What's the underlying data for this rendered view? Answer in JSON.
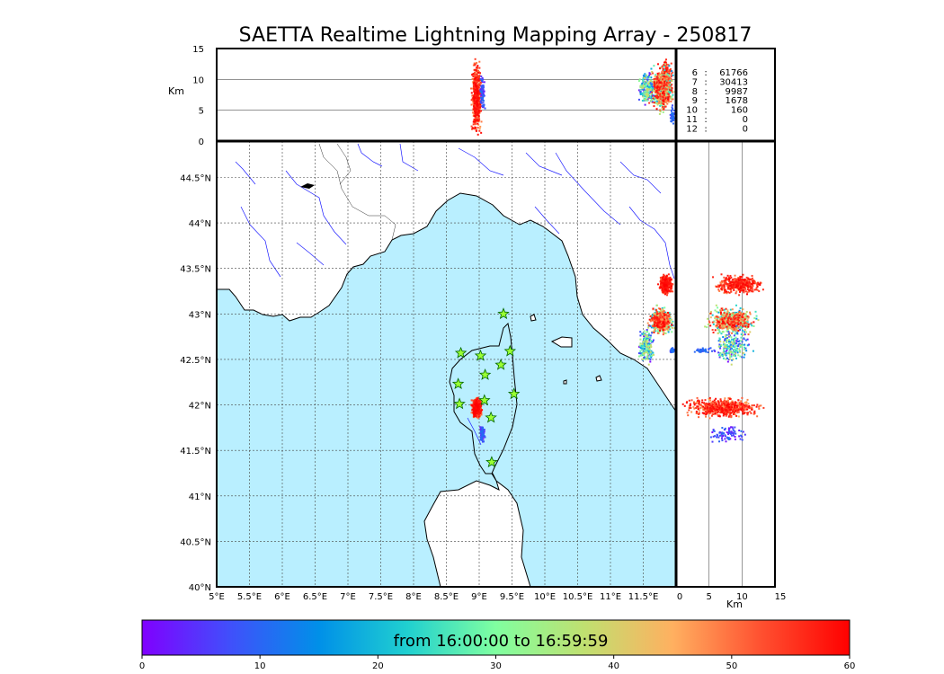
{
  "title": "SAETTA Realtime Lightning Mapping Array - 250817",
  "colors": {
    "sea": "#b9efff",
    "land": "#ffffff",
    "coast": "#000000",
    "river": "#1a1aff",
    "grid": "#444444",
    "station_fill": "#9aff33",
    "station_stroke": "#006600",
    "legend_highlight": "#ff0000"
  },
  "chart_data": {
    "type": "scatter",
    "map": {
      "lon_range": [
        5.0,
        12.0
      ],
      "lat_range": [
        40.0,
        44.9
      ],
      "lon_ticks": [
        "5°E",
        "5.5°E",
        "6°E",
        "6.5°E",
        "7°E",
        "7.5°E",
        "8°E",
        "8.5°E",
        "9°E",
        "9.5°E",
        "10°E",
        "10.5°E",
        "11°E",
        "11.5°E"
      ],
      "lat_ticks": [
        "40°N",
        "40.5°N",
        "41°N",
        "41.5°N",
        "42°N",
        "42.5°N",
        "43°N",
        "43.5°N",
        "44°N",
        "44.5°N"
      ],
      "grid": true
    },
    "altitude_axis": {
      "label": "Km",
      "range": [
        0,
        15
      ],
      "ticks": [
        "0",
        "5",
        "10",
        "15"
      ]
    },
    "stations": [
      {
        "lon": 9.37,
        "lat": 43.0
      },
      {
        "lon": 8.72,
        "lat": 42.57
      },
      {
        "lon": 9.02,
        "lat": 42.54
      },
      {
        "lon": 9.47,
        "lat": 42.59
      },
      {
        "lon": 9.33,
        "lat": 42.44
      },
      {
        "lon": 9.09,
        "lat": 42.33
      },
      {
        "lon": 8.68,
        "lat": 42.23
      },
      {
        "lon": 9.53,
        "lat": 42.12
      },
      {
        "lon": 8.7,
        "lat": 42.01
      },
      {
        "lon": 9.08,
        "lat": 42.05
      },
      {
        "lon": 9.18,
        "lat": 41.86
      },
      {
        "lon": 9.19,
        "lat": 41.37
      }
    ],
    "flash_clusters": [
      {
        "lon": [
          8.87,
          9.05
        ],
        "lat": [
          41.84,
          42.1
        ],
        "alt": [
          0.5,
          14
        ],
        "time": [
          45,
          60
        ],
        "n": 600
      },
      {
        "lon": [
          9.0,
          9.1
        ],
        "lat": [
          41.55,
          41.8
        ],
        "alt": [
          4,
          12
        ],
        "time": [
          0,
          12
        ],
        "n": 80
      },
      {
        "lon": [
          11.72,
          11.96
        ],
        "lat": [
          43.2,
          43.45
        ],
        "alt": [
          5,
          14
        ],
        "time": [
          48,
          60
        ],
        "n": 400
      },
      {
        "lon": [
          11.55,
          12.0
        ],
        "lat": [
          42.75,
          43.1
        ],
        "alt": [
          4,
          13
        ],
        "time": [
          15,
          60
        ],
        "n": 600
      },
      {
        "lon": [
          11.4,
          11.7
        ],
        "lat": [
          42.4,
          42.9
        ],
        "alt": [
          5,
          12
        ],
        "time": [
          0,
          40
        ],
        "n": 200
      },
      {
        "lon": [
          11.9,
          12.0
        ],
        "lat": [
          42.56,
          42.64
        ],
        "alt": [
          2,
          6
        ],
        "time": [
          5,
          12
        ],
        "n": 40
      }
    ],
    "colorbar": {
      "label": "from 16:00:00 to 16:59:59",
      "range": [
        0,
        60
      ],
      "ticks": [
        "0",
        "10",
        "20",
        "30",
        "40",
        "50",
        "60"
      ],
      "colormap": "rainbow"
    }
  },
  "legend": [
    {
      "level": "6",
      "sep": ":",
      "count": "61766",
      "highlight": true
    },
    {
      "level": "7",
      "sep": ":",
      "count": "30413",
      "highlight": false
    },
    {
      "level": "8",
      "sep": ":",
      "count": "9987",
      "highlight": false
    },
    {
      "level": "9",
      "sep": ":",
      "count": "1678",
      "highlight": false
    },
    {
      "level": "10",
      "sep": ":",
      "count": "160",
      "highlight": false
    },
    {
      "level": "11",
      "sep": ":",
      "count": "0",
      "highlight": false
    },
    {
      "level": "12",
      "sep": ":",
      "count": "0",
      "highlight": false
    }
  ]
}
